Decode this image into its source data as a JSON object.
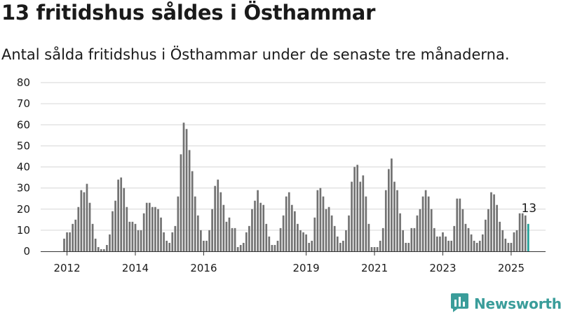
{
  "title": "13 fritidshus såldes i Östhammar",
  "subtitle": "Antal sålda fritidshus i Östhammar under de senaste tre månaderna.",
  "brand": {
    "name": "Newsworthy",
    "icon": "newsworthy-logo-icon",
    "color": "#3a9d9a"
  },
  "colors": {
    "bar": "#727272",
    "highlight": "#1f9e96",
    "grid": "#d6d6d6",
    "axis": "#333333"
  },
  "chart_data": {
    "type": "bar",
    "ylim": [
      0,
      80
    ],
    "yticks": [
      0,
      10,
      20,
      30,
      40,
      50,
      60,
      70,
      80
    ],
    "xtick_labels": [
      "2012",
      "2014",
      "2016",
      "2019",
      "2021",
      "2023",
      "2025"
    ],
    "xtick_indices": [
      1,
      25,
      49,
      85,
      109,
      133,
      157
    ],
    "grid": true,
    "first_period": "2011-12",
    "last_period": "2025-08",
    "highlight_last": true,
    "last_value_label": "13",
    "values": [
      6,
      9,
      9,
      13,
      15,
      21,
      29,
      28,
      32,
      23,
      13,
      6,
      2,
      1,
      1,
      3,
      8,
      19,
      24,
      34,
      35,
      30,
      21,
      14,
      14,
      13,
      10,
      10,
      18,
      23,
      23,
      21,
      21,
      20,
      16,
      9,
      5,
      4,
      9,
      12,
      26,
      46,
      61,
      58,
      48,
      38,
      26,
      17,
      10,
      5,
      5,
      10,
      20,
      31,
      34,
      28,
      22,
      14,
      16,
      11,
      11,
      2,
      3,
      4,
      9,
      12,
      20,
      24,
      29,
      23,
      22,
      13,
      7,
      3,
      3,
      5,
      11,
      17,
      26,
      28,
      22,
      19,
      13,
      10,
      9,
      8,
      4,
      5,
      16,
      29,
      30,
      26,
      20,
      21,
      17,
      12,
      7,
      4,
      5,
      10,
      17,
      33,
      40,
      41,
      33,
      36,
      26,
      13,
      2,
      2,
      2,
      5,
      11,
      29,
      39,
      44,
      33,
      29,
      18,
      10,
      4,
      4,
      11,
      11,
      17,
      20,
      26,
      29,
      26,
      20,
      11,
      7,
      7,
      9,
      7,
      5,
      5,
      12,
      25,
      25,
      20,
      13,
      11,
      8,
      5,
      4,
      5,
      8,
      15,
      20,
      28,
      27,
      22,
      14,
      10,
      6,
      4,
      4,
      9,
      10,
      18,
      18,
      17,
      13
    ]
  }
}
